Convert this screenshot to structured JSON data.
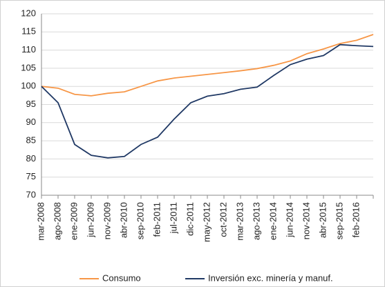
{
  "chart_data": {
    "type": "line",
    "categories": [
      "mar-2008",
      "ago-2008",
      "ene-2009",
      "jun-2009",
      "nov-2009",
      "abr-2010",
      "sep-2010",
      "feb-2011",
      "jul-2011",
      "dic-2011",
      "may-2012",
      "oct-2012",
      "mar-2013",
      "ago-2013",
      "ene-2014",
      "jun-2014",
      "nov-2014",
      "abr-2015",
      "sep-2015",
      "feb-2016",
      null
    ],
    "series": [
      {
        "name": "Consumo",
        "color": "#f79646",
        "values": [
          100,
          99.5,
          97.8,
          97.4,
          98.1,
          98.5,
          100,
          101.5,
          102.3,
          102.8,
          103.3,
          103.8,
          104.3,
          104.9,
          105.8,
          107,
          109,
          110.3,
          111.8,
          112.7,
          114.3
        ]
      },
      {
        "name": "Inversión exc. minería y manuf.",
        "color": "#1f3864",
        "values": [
          100,
          95.5,
          84,
          81,
          80.3,
          80.7,
          84,
          86,
          91,
          95.5,
          97.3,
          98,
          99.2,
          99.8,
          103,
          106,
          107.5,
          108.5,
          111.5,
          111.2,
          111
        ]
      }
    ],
    "ylim": [
      70,
      120
    ],
    "yticks": [
      70,
      75,
      80,
      85,
      90,
      95,
      100,
      105,
      110,
      115,
      120
    ],
    "grid": true,
    "legend": "bottom"
  }
}
